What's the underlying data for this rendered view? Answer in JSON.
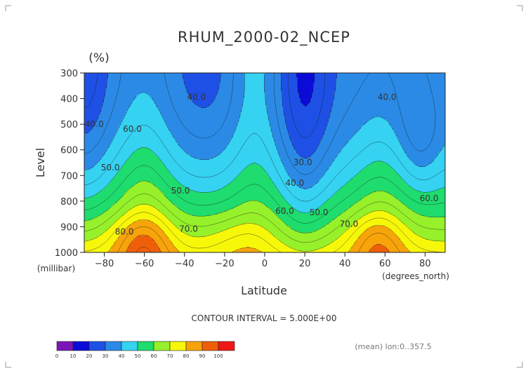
{
  "chart_data": {
    "type": "contour",
    "title": "RHUM_2000-02_NCEP",
    "units_label": "(%)",
    "xlabel": "Latitude",
    "xunits": "(degrees_north)",
    "ylabel": "Level",
    "yunits": "(millibar)",
    "xlim": [
      -90,
      90
    ],
    "ylim": [
      1000,
      300
    ],
    "xticks": [
      -80,
      -60,
      -40,
      -20,
      0,
      20,
      40,
      60,
      80
    ],
    "xtick_labels": [
      "−80",
      "−60",
      "−40",
      "−20",
      "0",
      "20",
      "40",
      "60",
      "80"
    ],
    "yticks": [
      300,
      400,
      500,
      600,
      700,
      800,
      900,
      1000
    ],
    "contour_interval_text": "CONTOUR INTERVAL = 5.000E+00",
    "footer_note": "(mean) lon:0..357.5",
    "levels": [
      0,
      10,
      20,
      30,
      40,
      50,
      60,
      70,
      80,
      90,
      100
    ],
    "colors": [
      "#7b16b6",
      "#0b0bd8",
      "#1e50e6",
      "#2b8ae6",
      "#35d2f2",
      "#1edc6e",
      "#96f02a",
      "#f7f70a",
      "#f7a30a",
      "#ef5f0a",
      "#f11616"
    ],
    "colorbar_labels": [
      "0",
      "10",
      "20",
      "30",
      "40",
      "50",
      "60",
      "70",
      "80",
      "90",
      "100"
    ],
    "contour_labels": [
      {
        "text": "40.0",
        "lat": -34,
        "lev": 405
      },
      {
        "text": "40.0",
        "lat": 61,
        "lev": 405
      },
      {
        "text": "40.0",
        "lat": -85,
        "lev": 510
      },
      {
        "text": "60.0",
        "lat": -66,
        "lev": 530
      },
      {
        "text": "50.0",
        "lat": -77,
        "lev": 680
      },
      {
        "text": "30.0",
        "lat": 19,
        "lev": 660
      },
      {
        "text": "40.0",
        "lat": 15,
        "lev": 740
      },
      {
        "text": "50.0",
        "lat": -42,
        "lev": 770
      },
      {
        "text": "60.0",
        "lat": 10,
        "lev": 850
      },
      {
        "text": "50.0",
        "lat": 27,
        "lev": 855
      },
      {
        "text": "60.0",
        "lat": 82,
        "lev": 800
      },
      {
        "text": "70.0",
        "lat": -38,
        "lev": 920
      },
      {
        "text": "70.0",
        "lat": 42,
        "lev": 900
      },
      {
        "text": "80.0",
        "lat": -70,
        "lev": 930
      }
    ]
  }
}
